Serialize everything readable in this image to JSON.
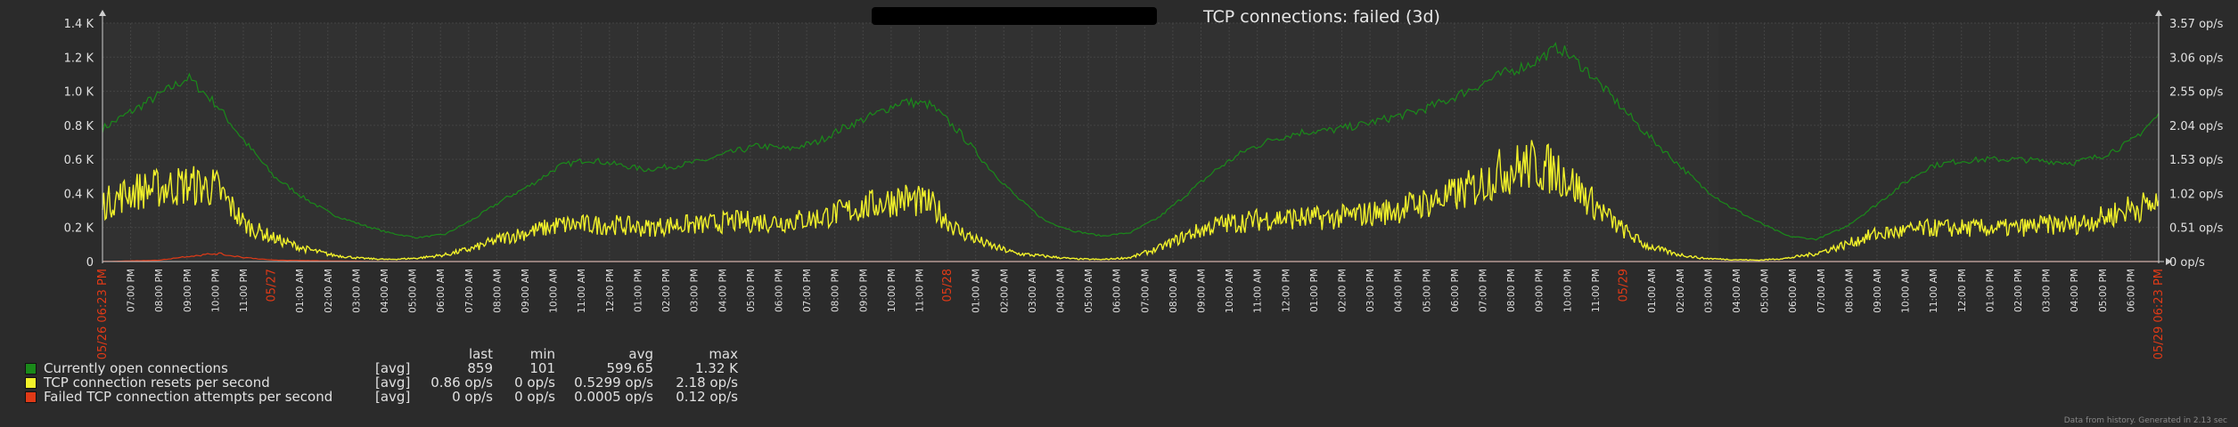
{
  "header": {
    "title": "TCP connections: failed (3d)"
  },
  "colors": {
    "background": "#2b2b2b",
    "plot": "#313131",
    "grid": "#444444",
    "open": "#1a8a1a",
    "resets": "#f2f22a",
    "failed": "#e03a17",
    "day_label": "#e03a17",
    "text": "#e0e0e0"
  },
  "chart_data": {
    "type": "line",
    "title": "TCP connections: failed (3d)",
    "x_tick_labels": [
      "05/26 06:23 PM",
      "07:00 PM",
      "08:00 PM",
      "09:00 PM",
      "10:00 PM",
      "11:00 PM",
      "05/27",
      "01:00 AM",
      "02:00 AM",
      "03:00 AM",
      "04:00 AM",
      "05:00 AM",
      "06:00 AM",
      "07:00 AM",
      "08:00 AM",
      "09:00 AM",
      "10:00 AM",
      "11:00 AM",
      "12:00 PM",
      "01:00 PM",
      "02:00 PM",
      "03:00 PM",
      "04:00 PM",
      "05:00 PM",
      "06:00 PM",
      "07:00 PM",
      "08:00 PM",
      "09:00 PM",
      "10:00 PM",
      "11:00 PM",
      "05/28",
      "01:00 AM",
      "02:00 AM",
      "03:00 AM",
      "04:00 AM",
      "05:00 AM",
      "06:00 AM",
      "07:00 AM",
      "08:00 AM",
      "09:00 AM",
      "10:00 AM",
      "11:00 AM",
      "12:00 PM",
      "01:00 PM",
      "02:00 PM",
      "03:00 PM",
      "04:00 PM",
      "05:00 PM",
      "06:00 PM",
      "07:00 PM",
      "08:00 PM",
      "09:00 PM",
      "10:00 PM",
      "11:00 PM",
      "05/29",
      "01:00 AM",
      "02:00 AM",
      "03:00 AM",
      "04:00 AM",
      "05:00 AM",
      "06:00 AM",
      "07:00 AM",
      "08:00 AM",
      "09:00 AM",
      "10:00 AM",
      "11:00 AM",
      "12:00 PM",
      "01:00 PM",
      "02:00 PM",
      "03:00 PM",
      "04:00 PM",
      "05:00 PM",
      "06:00 PM",
      "05/29 06:23 PM"
    ],
    "day_labels": [
      "05/26 06:23 PM",
      "05/27",
      "05/28",
      "05/29",
      "05/29 06:23 PM"
    ],
    "x_hours_range": [
      0,
      72
    ],
    "y_left": {
      "ticks": [
        "0",
        "0.2 K",
        "0.4 K",
        "0.6 K",
        "0.8 K",
        "1.0 K",
        "1.2 K",
        "1.4 K"
      ],
      "ylim": [
        0,
        1400
      ]
    },
    "y_right": {
      "ticks": [
        "0 op/s",
        "0.51 op/s",
        "1.02 op/s",
        "1.53 op/s",
        "2.04 op/s",
        "2.55 op/s",
        "3.06 op/s",
        "3.57 op/s"
      ],
      "ylim": [
        0,
        3.57
      ]
    },
    "shaded_region_hours": [
      0,
      56.6
    ],
    "series": [
      {
        "name": "Currently open connections",
        "axis": "left",
        "color": "#1a8a1a",
        "x": [
          0,
          1,
          2,
          3,
          4,
          5,
          6,
          7,
          8,
          9,
          10,
          11,
          12,
          13,
          14,
          15,
          16,
          17,
          18,
          19,
          20,
          21,
          22,
          23,
          24,
          25,
          26,
          27,
          28,
          29,
          30,
          31,
          32,
          33,
          34,
          35,
          36,
          37,
          38,
          39,
          40,
          41,
          42,
          43,
          44,
          45,
          46,
          47,
          48,
          49,
          50,
          51,
          52,
          53,
          54,
          55,
          56,
          57,
          58,
          59,
          60,
          61,
          62,
          63,
          64,
          65,
          66,
          67,
          68,
          69,
          70,
          71,
          72
        ],
        "values": [
          780,
          880,
          980,
          1080,
          920,
          700,
          500,
          380,
          280,
          220,
          170,
          140,
          160,
          250,
          360,
          450,
          560,
          600,
          570,
          540,
          560,
          590,
          640,
          680,
          660,
          700,
          790,
          860,
          940,
          920,
          760,
          560,
          380,
          240,
          180,
          150,
          170,
          260,
          400,
          540,
          650,
          720,
          760,
          770,
          800,
          840,
          880,
          940,
          1020,
          1100,
          1160,
          1260,
          1120,
          940,
          760,
          600,
          440,
          320,
          230,
          150,
          130,
          200,
          320,
          450,
          560,
          590,
          600,
          600,
          590,
          580,
          620,
          700,
          859
        ]
      },
      {
        "name": "TCP connection resets per second",
        "axis": "right",
        "color": "#f2f22a",
        "x": [
          0,
          1,
          2,
          3,
          4,
          5,
          6,
          7,
          8,
          9,
          10,
          11,
          12,
          13,
          14,
          15,
          16,
          17,
          18,
          19,
          20,
          21,
          22,
          23,
          24,
          25,
          26,
          27,
          28,
          29,
          30,
          31,
          32,
          33,
          34,
          35,
          36,
          37,
          38,
          39,
          40,
          41,
          42,
          43,
          44,
          45,
          46,
          47,
          48,
          49,
          50,
          51,
          52,
          53,
          54,
          55,
          56,
          57,
          58,
          59,
          60,
          61,
          62,
          63,
          64,
          65,
          66,
          67,
          68,
          69,
          70,
          71,
          72
        ],
        "values": [
          0.85,
          1.05,
          1.1,
          1.15,
          1.1,
          0.55,
          0.35,
          0.2,
          0.1,
          0.05,
          0.03,
          0.05,
          0.1,
          0.2,
          0.35,
          0.45,
          0.55,
          0.55,
          0.55,
          0.5,
          0.55,
          0.55,
          0.6,
          0.6,
          0.6,
          0.65,
          0.75,
          0.85,
          0.95,
          0.85,
          0.45,
          0.25,
          0.12,
          0.08,
          0.04,
          0.03,
          0.06,
          0.2,
          0.4,
          0.55,
          0.6,
          0.65,
          0.65,
          0.65,
          0.7,
          0.75,
          0.85,
          0.95,
          1.1,
          1.35,
          1.45,
          1.35,
          0.95,
          0.55,
          0.25,
          0.12,
          0.05,
          0.03,
          0.02,
          0.05,
          0.12,
          0.25,
          0.4,
          0.45,
          0.5,
          0.5,
          0.5,
          0.5,
          0.55,
          0.55,
          0.65,
          0.8,
          0.86
        ]
      },
      {
        "name": "Failed TCP connection attempts per second",
        "axis": "right",
        "color": "#e03a17",
        "x": [
          0,
          2,
          3,
          4,
          5,
          6,
          10,
          20,
          30,
          40,
          50,
          60,
          72
        ],
        "values": [
          0,
          0.02,
          0.08,
          0.12,
          0.06,
          0.02,
          0,
          0,
          0,
          0,
          0,
          0,
          0
        ]
      }
    ]
  },
  "legend": {
    "headers": {
      "last": "last",
      "min": "min",
      "avg": "avg",
      "max": "max"
    },
    "rows": [
      {
        "name": "Currently open connections",
        "agg": "[avg]",
        "last": "859",
        "min": "101",
        "avg": "599.65",
        "max": "1.32 K",
        "color": "#1a8a1a"
      },
      {
        "name": "TCP connection resets per second",
        "agg": "[avg]",
        "last": "0.86 op/s",
        "min": "0 op/s",
        "avg": "0.5299 op/s",
        "max": "2.18 op/s",
        "color": "#f2f22a"
      },
      {
        "name": "Failed TCP connection attempts per second",
        "agg": "[avg]",
        "last": "0 op/s",
        "min": "0 op/s",
        "avg": "0.0005 op/s",
        "max": "0.12 op/s",
        "color": "#e03a17"
      }
    ]
  },
  "footer": {
    "note": "Data from history. Generated in 2.13 sec"
  }
}
